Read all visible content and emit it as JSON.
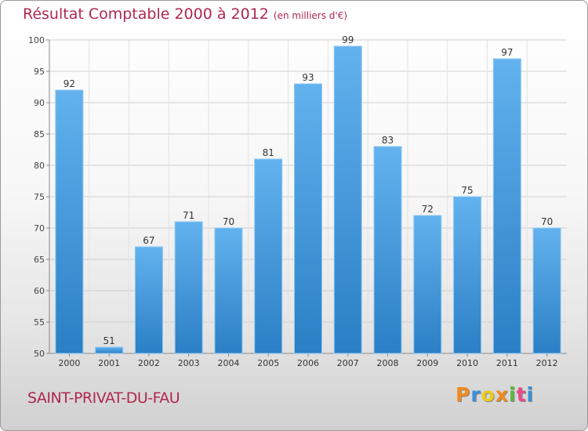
{
  "chart_data": {
    "type": "bar",
    "title": "Résultat Comptable 2000 à 2012",
    "subtitle": "(en milliers d'€)",
    "categories": [
      "2000",
      "2001",
      "2002",
      "2003",
      "2004",
      "2005",
      "2006",
      "2007",
      "2008",
      "2009",
      "2010",
      "2011",
      "2012"
    ],
    "values": [
      92,
      51,
      67,
      71,
      70,
      81,
      93,
      99,
      83,
      72,
      75,
      97,
      70
    ],
    "ylim": [
      50,
      100
    ],
    "yticks": [
      50,
      55,
      60,
      65,
      70,
      75,
      80,
      85,
      90,
      95,
      100
    ],
    "xlabel": "",
    "ylabel": "",
    "grid": true
  },
  "place": "SAINT-PRIVAT-DU-FAU",
  "brand": "Proxiti",
  "colors": {
    "title": "#b0284f",
    "bar_light": "#62b2ee",
    "bar_dark": "#2a7fc5",
    "grid": "#cccccc"
  }
}
